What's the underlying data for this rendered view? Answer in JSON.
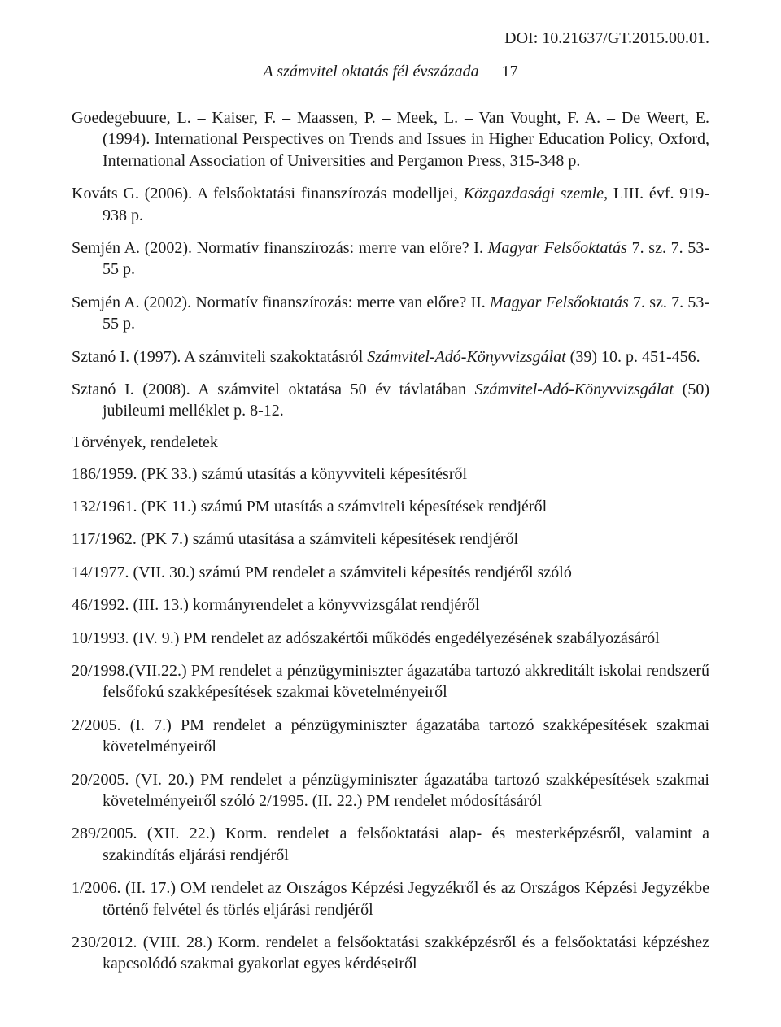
{
  "doi": "DOI: 10.21637/GT.2015.00.01.",
  "running_title": "A számvitel oktatás fél évszázada",
  "page_number": "17",
  "references": [
    {
      "pre": "Goedegebuure, L. – Kaiser, F. – Maassen, P. – Meek, L. – Van Vought, F. A. – De Weert, E. (1994). International Perspectives on Trends and Issues in Higher Education Policy, Oxford, International Association of Universities and Pergamon Press, 315-348 p."
    },
    {
      "pre": "Kováts G. (2006). A felsőoktatási finanszírozás modelljei, ",
      "ital": "Közgazdasági szemle",
      "post": ", LIII. évf. 919-938 p."
    },
    {
      "pre": "Semjén A. (2002). Normatív finanszírozás: merre van előre? I. ",
      "ital": "Magyar Felsőoktatás",
      "post": " 7. sz. 7. 53-55 p."
    },
    {
      "pre": "Semjén A. (2002). Normatív finanszírozás: merre van előre? II. ",
      "ital": "Magyar Felsőoktatás",
      "post": " 7. sz. 7. 53-55 p."
    },
    {
      "pre": "Sztanó I. (1997). A számviteli szakoktatásról ",
      "ital": "Számvitel-Adó-Könyvvizsgálat",
      "post": " (39) 10. p. 451-456."
    },
    {
      "pre": "Sztanó I. (2008). A számvitel oktatása 50 év távlatában ",
      "ital": "Számvitel-Adó-Könyvvizsgálat",
      "post": " (50) jubileumi melléklet p. 8-12."
    }
  ],
  "section_heading": "Törvények, rendeletek",
  "laws": [
    "186/1959. (PK 33.) számú utasítás a könyvviteli képesítésről",
    "132/1961. (PK 11.) számú PM utasítás a számviteli képesítések rendjéről",
    "117/1962. (PK 7.) számú utasítása a számviteli képesítések rendjéről",
    "14/1977. (VII. 30.) számú PM rendelet a számviteli képesítés rendjéről szóló",
    "46/1992. (III. 13.) kormányrendelet a könyvvizsgálat rendjéről",
    "10/1993. (IV. 9.) PM rendelet az adószakértői működés engedélyezésének szabályozásáról",
    "20/1998.(VII.22.) PM rendelet a pénzügyminiszter ágazatába tartozó akkreditált iskolai rendszerű felsőfokú szakképesítések szakmai követelményeiről",
    "2/2005. (I. 7.) PM rendelet a pénzügyminiszter ágazatába tartozó szakképesítések szakmai követelményeiről",
    "20/2005. (VI. 20.) PM rendelet a pénzügyminiszter ágazatába tartozó szakképesítések szakmai követelményeiről szóló 2/1995. (II. 22.) PM rendelet módosításáról",
    "289/2005. (XII. 22.) Korm. rendelet a felsőoktatási alap- és mesterképzésről, valamint a szakindítás eljárási rendjéről",
    "1/2006. (II. 17.) OM rendelet az Országos Képzési Jegyzékről és az Országos Képzési Jegyzékbe történő felvétel és törlés eljárási rendjéről",
    "230/2012. (VIII. 28.) Korm. rendelet a felsőoktatási szakképzésről és a felsőoktatási képzéshez kapcsolódó szakmai gyakorlat egyes kérdéseiről"
  ]
}
